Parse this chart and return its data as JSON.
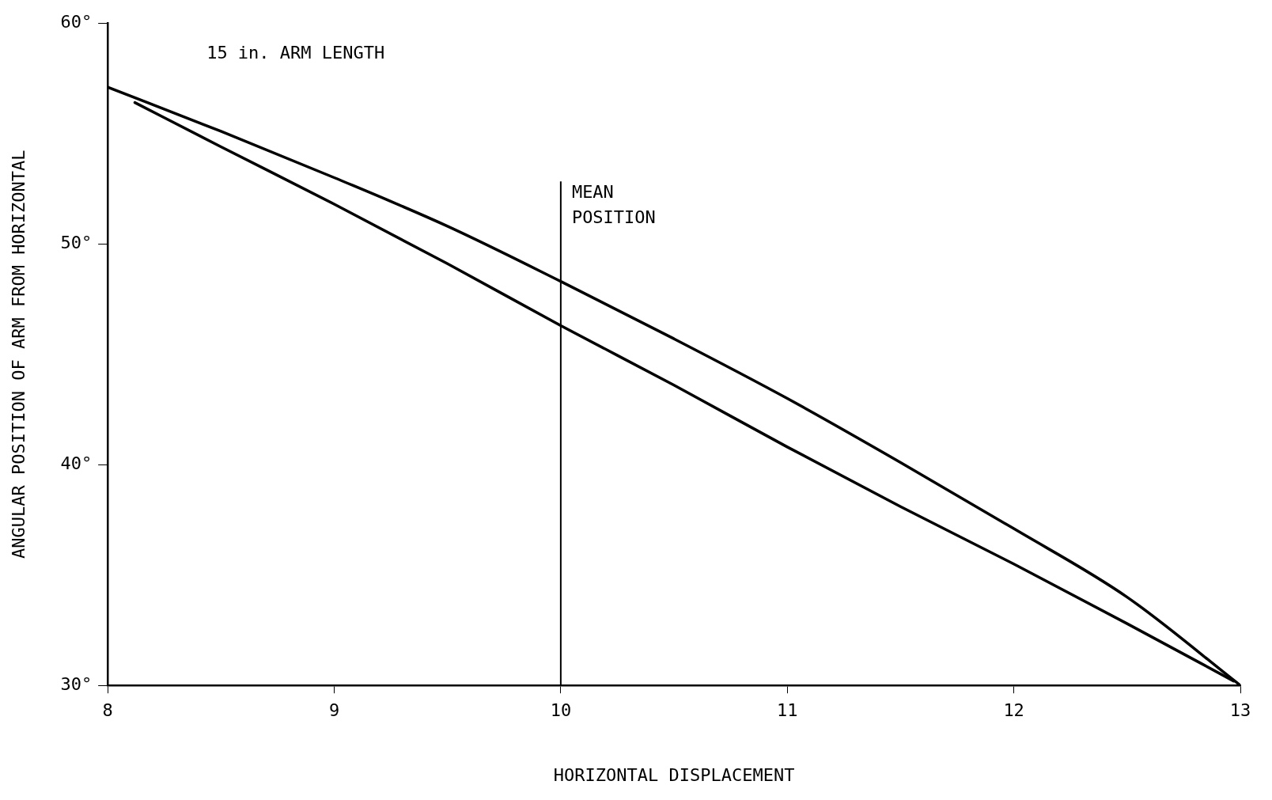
{
  "chart_data": {
    "type": "line",
    "xlabel": "HORIZONTAL DISPLACEMENT",
    "ylabel": "ANGULAR POSITION OF ARM FROM HORIZONTAL",
    "annotations": [
      "15 in. ARM LENGTH"
    ],
    "xlim": [
      8,
      13
    ],
    "xticks": [
      8,
      9,
      10,
      11,
      12,
      13
    ],
    "ylim": [
      30,
      60
    ],
    "yticks": [
      {
        "value": 30,
        "label": "30°"
      },
      {
        "value": 40,
        "label": "40°"
      },
      {
        "value": 50,
        "label": "50°"
      },
      {
        "value": 60,
        "label": "60°"
      }
    ],
    "series": [
      {
        "color": "#000000",
        "x": [
          8,
          8.5,
          9,
          9.5,
          10,
          10.5,
          11,
          11.5,
          12,
          12.5,
          13
        ],
        "values": [
          57.1,
          55.1,
          53.0,
          50.8,
          48.3,
          45.7,
          43.0,
          40.1,
          37.1,
          34.0,
          30
        ]
      },
      {
        "color": "#000000",
        "x": [
          8.12,
          8.5,
          9,
          9.5,
          10,
          10.5,
          11,
          11.5,
          12,
          12.5,
          12.97
        ],
        "values": [
          56.4,
          54.4,
          51.8,
          49.1,
          46.3,
          43.6,
          40.8,
          38.1,
          35.5,
          32.8,
          30.2
        ]
      }
    ],
    "ref_lines": [
      {
        "axis": "x",
        "value": 10,
        "label": "MEAN POSITION"
      }
    ],
    "grid": false,
    "legend": false,
    "marker": "none",
    "line_style": "solid"
  }
}
